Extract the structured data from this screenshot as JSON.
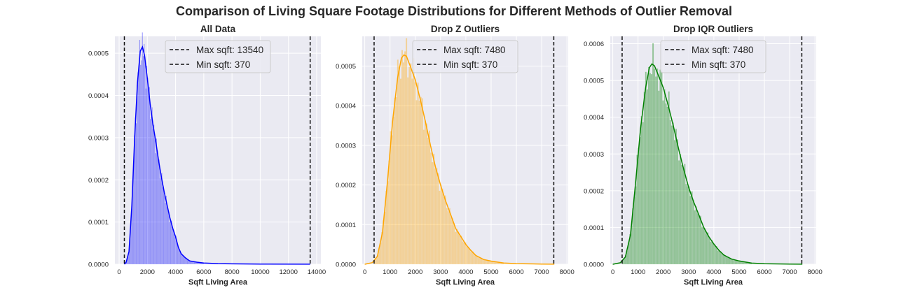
{
  "figure": {
    "title": "Comparison of Living Square Footage Distributions for Different Methods of Outlier Removal"
  },
  "chart_data": [
    {
      "type": "bar",
      "subtype": "histogram-with-kde",
      "title": "All Data",
      "xlabel": "Sqft Living Area",
      "ylabel": "",
      "color": "#0000ff",
      "xlim": [
        -300,
        14300
      ],
      "ylim": [
        0,
        0.00054
      ],
      "xticks": [
        0,
        2000,
        4000,
        6000,
        8000,
        10000,
        12000,
        14000
      ],
      "yticks": [
        0.0,
        0.0001,
        0.0002,
        0.0003,
        0.0004,
        0.0005
      ],
      "ytick_labels": [
        "0.0000",
        "0.0001",
        "0.0002",
        "0.0003",
        "0.0004",
        "0.0005"
      ],
      "grid": true,
      "legend_position": "top-center",
      "legend": [
        "Max sqft: 13540",
        "Min sqft: 370"
      ],
      "vlines": [
        13540,
        370
      ],
      "kde": {
        "x": [
          370,
          500,
          700,
          900,
          1100,
          1300,
          1500,
          1650,
          1800,
          2000,
          2200,
          2400,
          2600,
          2800,
          3000,
          3200,
          3400,
          3600,
          3800,
          4000,
          4200,
          4400,
          4700,
          5000,
          5500,
          6000,
          7000,
          8000,
          10000,
          13540
        ],
        "y": [
          0.0,
          5e-06,
          3e-05,
          0.00014,
          0.0003,
          0.00043,
          0.000505,
          0.000515,
          0.000495,
          0.00044,
          0.00038,
          0.00033,
          0.00029,
          0.000245,
          0.000205,
          0.00017,
          0.00014,
          0.00011,
          8.5e-05,
          6.5e-05,
          4e-05,
          2.5e-05,
          1.5e-05,
          8e-06,
          5e-06,
          3e-06,
          1.5e-06,
          1e-06,
          5e-07,
          2e-07
        ]
      },
      "hist_x_range": [
        370,
        6000
      ]
    },
    {
      "type": "bar",
      "subtype": "histogram-with-kde",
      "title": "Drop Z Outliers",
      "xlabel": "Sqft Living Area",
      "ylabel": "",
      "color": "#ffa500",
      "xlim": [
        -100,
        8050
      ],
      "ylim": [
        0,
        0.000575
      ],
      "xticks": [
        0,
        1000,
        2000,
        3000,
        4000,
        5000,
        6000,
        7000,
        8000
      ],
      "yticks": [
        0.0,
        0.0001,
        0.0002,
        0.0003,
        0.0004,
        0.0005
      ],
      "ytick_labels": [
        "0.0000",
        "0.0001",
        "0.0002",
        "0.0003",
        "0.0004",
        "0.0005"
      ],
      "grid": true,
      "legend_position": "top-center",
      "legend": [
        "Max sqft: 7480",
        "Min sqft: 370"
      ],
      "vlines": [
        7480,
        370
      ],
      "kde": {
        "x": [
          0,
          300,
          500,
          700,
          900,
          1100,
          1300,
          1450,
          1550,
          1650,
          1800,
          2000,
          2200,
          2400,
          2600,
          2800,
          3000,
          3200,
          3400,
          3600,
          3800,
          4000,
          4200,
          4400,
          4700,
          5000,
          5500,
          6000,
          7000,
          7500
        ],
        "y": [
          0.0,
          4e-06,
          2e-05,
          8e-05,
          0.00021,
          0.00036,
          0.00047,
          0.00052,
          0.000528,
          0.000525,
          0.0005,
          0.000465,
          0.000415,
          0.00036,
          0.0003,
          0.000245,
          0.0002,
          0.00016,
          0.000125,
          9e-05,
          7e-05,
          5e-05,
          3.5e-05,
          2.2e-05,
          1.2e-05,
          8e-06,
          3e-06,
          1.5e-06,
          5e-07,
          2e-07
        ]
      },
      "hist_x_range": [
        370,
        5500
      ]
    },
    {
      "type": "bar",
      "subtype": "histogram-with-kde",
      "title": "Drop IQR Outliers",
      "xlabel": "Sqft Living Area",
      "ylabel": "",
      "color": "#008000",
      "xlim": [
        -100,
        8050
      ],
      "ylim": [
        0,
        0.00062
      ],
      "xticks": [
        0,
        1000,
        2000,
        3000,
        4000,
        5000,
        6000,
        7000,
        8000
      ],
      "yticks": [
        0.0,
        0.0001,
        0.0002,
        0.0003,
        0.0004,
        0.0005,
        0.0006
      ],
      "ytick_labels": [
        "0.0000",
        "0.0001",
        "0.0002",
        "0.0003",
        "0.0004",
        "0.0005",
        "0.0006"
      ],
      "grid": true,
      "legend_position": "top-center",
      "legend": [
        "Max sqft: 7480",
        "Min sqft: 370"
      ],
      "vlines": [
        7480,
        370
      ],
      "kde": {
        "x": [
          0,
          300,
          500,
          700,
          900,
          1100,
          1300,
          1450,
          1550,
          1650,
          1800,
          2000,
          2200,
          2400,
          2600,
          2800,
          3000,
          3200,
          3400,
          3600,
          3800,
          4000,
          4200,
          4400,
          4700,
          5000,
          5500,
          6000,
          7000,
          7500
        ],
        "y": [
          0.0,
          4e-06,
          2e-05,
          8e-05,
          0.00022,
          0.00037,
          0.00048,
          0.000535,
          0.000545,
          0.00054,
          0.000515,
          0.00048,
          0.00043,
          0.000375,
          0.000315,
          0.00026,
          0.00021,
          0.00017,
          0.000135,
          0.0001,
          7.5e-05,
          5.5e-05,
          3.8e-05,
          2.5e-05,
          1.4e-05,
          9e-06,
          3e-06,
          1.5e-06,
          5e-07,
          2e-07
        ]
      },
      "hist_x_range": [
        370,
        5500
      ]
    }
  ]
}
